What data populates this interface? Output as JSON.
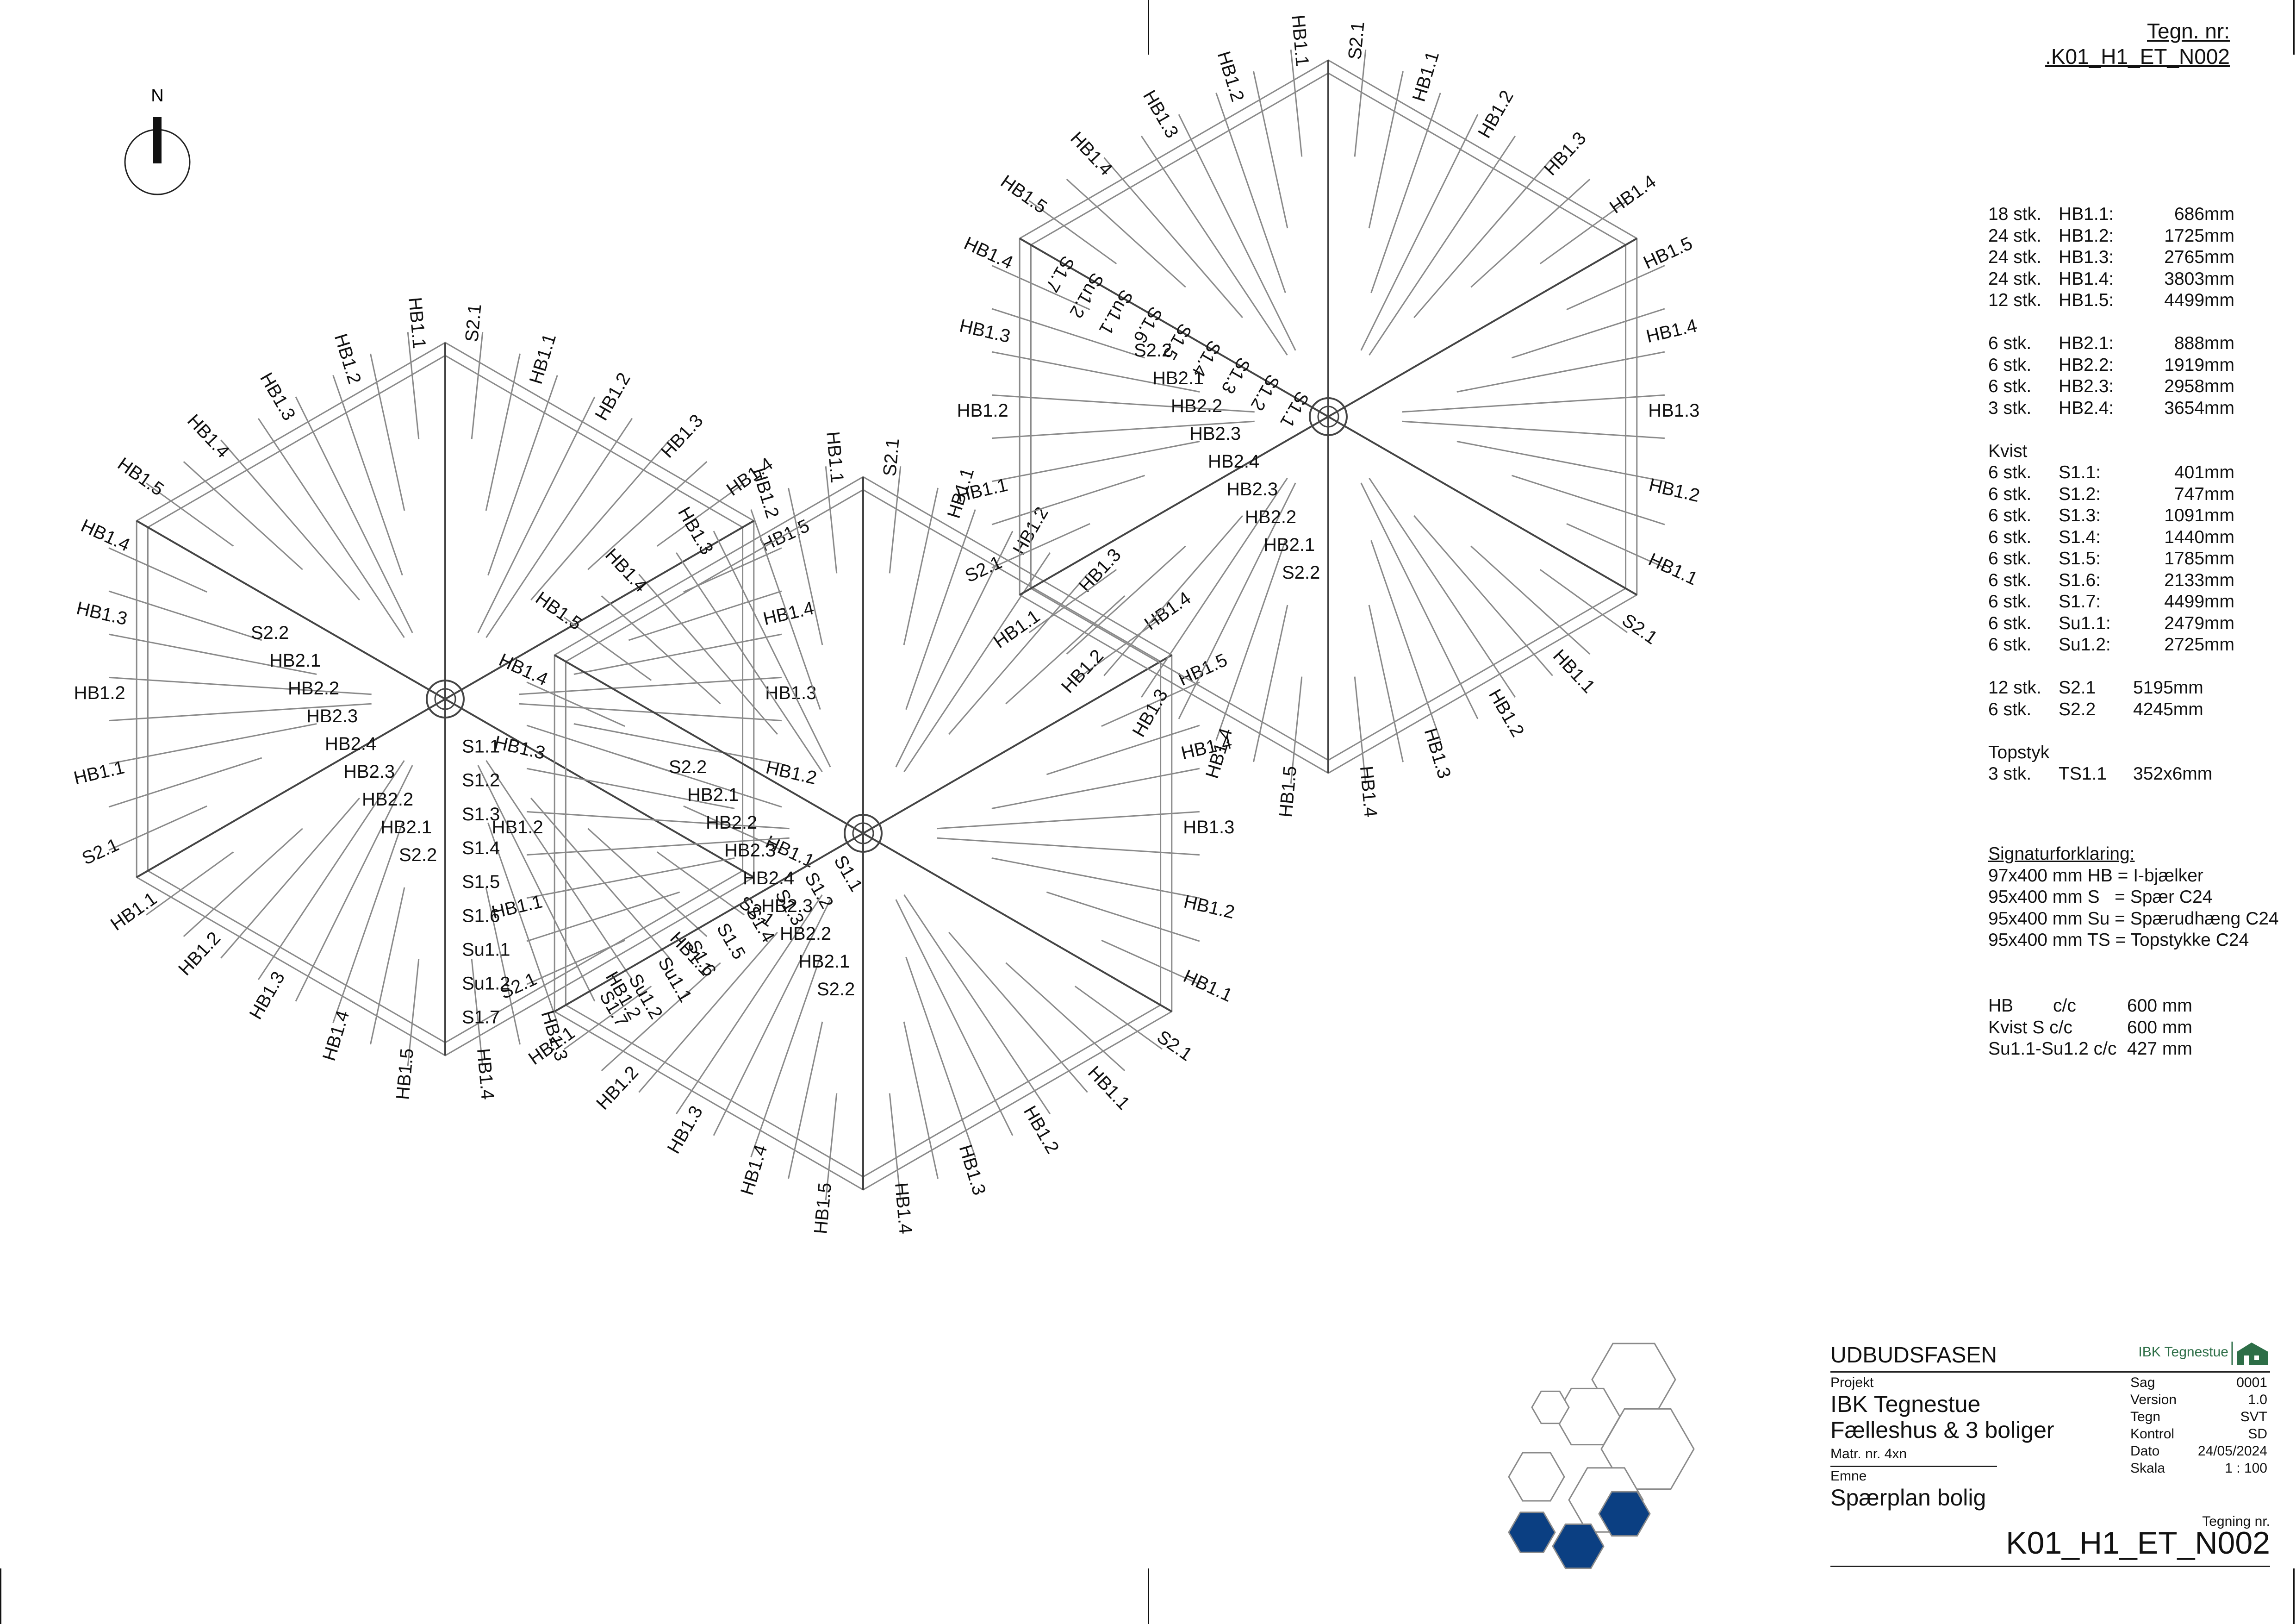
{
  "north_label": "N",
  "drawing_ref": {
    "label": "Tegn. nr:",
    "number": ".K01_H1_ET_N002"
  },
  "schedule": {
    "hb1": [
      {
        "qty": "18 stk.",
        "code": "HB1.1:",
        "length": "686mm"
      },
      {
        "qty": "24 stk.",
        "code": "HB1.2:",
        "length": "1725mm"
      },
      {
        "qty": "24 stk.",
        "code": "HB1.3:",
        "length": "2765mm"
      },
      {
        "qty": "24 stk.",
        "code": "HB1.4:",
        "length": "3803mm"
      },
      {
        "qty": "12 stk.",
        "code": "HB1.5:",
        "length": "4499mm"
      }
    ],
    "hb2": [
      {
        "qty": "6 stk.",
        "code": "HB2.1:",
        "length": "888mm"
      },
      {
        "qty": "6 stk.",
        "code": "HB2.2:",
        "length": "1919mm"
      },
      {
        "qty": "6 stk.",
        "code": "HB2.3:",
        "length": "2958mm"
      },
      {
        "qty": "3 stk.",
        "code": "HB2.4:",
        "length": "3654mm"
      }
    ],
    "kvist_heading": "Kvist",
    "kvist": [
      {
        "qty": "6 stk.",
        "code": "S1.1:",
        "length": "401mm"
      },
      {
        "qty": "6 stk.",
        "code": "S1.2:",
        "length": "747mm"
      },
      {
        "qty": "6 stk.",
        "code": "S1.3:",
        "length": "1091mm"
      },
      {
        "qty": "6 stk.",
        "code": "S1.4:",
        "length": "1440mm"
      },
      {
        "qty": "6 stk.",
        "code": "S1.5:",
        "length": "1785mm"
      },
      {
        "qty": "6 stk.",
        "code": "S1.6:",
        "length": "2133mm"
      },
      {
        "qty": "6 stk.",
        "code": "S1.7:",
        "length": "4499mm"
      },
      {
        "qty": "6 stk.",
        "code": "Su1.1:",
        "length": "2479mm"
      },
      {
        "qty": "6 stk.",
        "code": "Su1.2:",
        "length": "2725mm"
      }
    ],
    "s2": [
      {
        "qty": "12 stk.",
        "code": "S2.1",
        "length": "5195mm"
      },
      {
        "qty": "6 stk.",
        "code": "S2.2",
        "length": "4245mm"
      }
    ],
    "topstyk_heading": "Topstyk",
    "topstyk": [
      {
        "qty": "3 stk.",
        "code": "TS1.1",
        "length": "352x6mm"
      }
    ]
  },
  "legend": {
    "title": "Signaturforklaring:",
    "items": [
      "97x400 mm HB = I-bjælker",
      "95x400 mm S   = Spær C24",
      "95x400 mm Su = Spærudhæng C24",
      "95x400 mm TS = Topstykke C24"
    ]
  },
  "spacing": [
    {
      "name": "HB",
      "unit": "c/c",
      "value": "600 mm"
    },
    {
      "name": "Kvist S c/c",
      "unit": "",
      "value": "600 mm"
    },
    {
      "name": "Su1.1-Su1.2 c/c",
      "unit": "",
      "value": "427 mm"
    }
  ],
  "title_block": {
    "phase": "UDBUDSFASEN",
    "company": "IBK Tegnestue",
    "project_label": "Projekt",
    "project_name": "IBK Tegnestue",
    "project_sub": "Fælleshus & 3 boliger",
    "matr": "Matr. nr. 4xn",
    "subject_label": "Emne",
    "subject": "Spærplan bolig",
    "meta": [
      {
        "key": "Sag",
        "value": "0001"
      },
      {
        "key": "Version",
        "value": "1.0"
      },
      {
        "key": "Tegn",
        "value": "SVT"
      },
      {
        "key": "Kontrol",
        "value": "SD"
      },
      {
        "key": "Dato",
        "value": "24/05/2024"
      },
      {
        "key": "Skala",
        "value": "1 : 100"
      }
    ],
    "drawing_no_label": "Tegning nr.",
    "drawing_no": "K01_H1_ET_N002"
  },
  "plan_colors": {
    "line": "#8a8a8a",
    "dark": "#444444",
    "fill": "#0b3f82"
  },
  "plan": {
    "hexes": [
      {
        "hb_labels": [
          "S2.1",
          "HB1.1",
          "HB1.2",
          "HB1.3",
          "HB1.4",
          "HB1.5",
          "HB1.4",
          "HB1.3",
          "HB1.2",
          "HB1.1",
          "S2.1",
          "HB1.1",
          "HB1.2",
          "HB1.3",
          "HB1.4",
          "HB1.5",
          "HB1.4",
          "HB1.3",
          "HB1.2",
          "HB1.1",
          "S2.1",
          "HB1.1",
          "HB1.2",
          "HB1.3",
          "HB1.4",
          "HB1.5",
          "HB1.4",
          "HB1.3",
          "HB1.2",
          "HB1.1"
        ],
        "hb2_labels": [
          "S2.2",
          "HB2.1",
          "HB2.2",
          "HB2.3",
          "HB2.4",
          "HB2.3",
          "HB2.2",
          "HB2.1",
          "S2.2"
        ],
        "kvist_labels": [
          "S1.1",
          "S1.2",
          "S1.3",
          "S1.4",
          "S1.5",
          "S1.6",
          "Su1.1",
          "Su1.2",
          "S1.7"
        ]
      },
      {
        "hb_labels": [
          "S2.1",
          "HB1.1",
          "HB1.2",
          "HB1.3",
          "HB1.4",
          "HB1.5",
          "HB1.4",
          "HB1.3",
          "HB1.2",
          "HB1.1",
          "S2.1",
          "HB1.1",
          "HB1.2",
          "HB1.3",
          "HB1.4",
          "HB1.5",
          "HB1.4",
          "HB1.3",
          "HB1.2",
          "HB1.1",
          "S2.1",
          "HB1.1",
          "HB1.2",
          "HB1.3",
          "HB1.4",
          "HB1.5",
          "HB1.4",
          "HB1.3",
          "HB1.2",
          "HB1.1"
        ],
        "hb2_labels": [
          "S2.2",
          "HB2.1",
          "HB2.2",
          "HB2.3",
          "HB2.4",
          "HB2.3",
          "HB2.2",
          "HB2.1",
          "S2.2"
        ],
        "kvist_labels": [
          "S1.1",
          "S1.2",
          "S1.3",
          "S1.4",
          "S1.5",
          "S1.6",
          "Su1.1",
          "Su1.2",
          "S1.7"
        ]
      },
      {
        "hb_labels": [
          "S2.1",
          "HB1.1",
          "HB1.2",
          "HB1.3",
          "HB1.4",
          "HB1.5",
          "HB1.4",
          "HB1.3",
          "HB1.2",
          "HB1.1",
          "S2.1",
          "HB1.1",
          "HB1.2",
          "HB1.3",
          "HB1.4",
          "HB1.5",
          "HB1.4",
          "HB1.3",
          "HB1.2",
          "HB1.1",
          "S2.1",
          "HB1.1",
          "HB1.2",
          "HB1.3",
          "HB1.4",
          "HB1.5",
          "HB1.4",
          "HB1.3",
          "HB1.2",
          "HB1.1"
        ],
        "hb2_labels": [
          "S2.2",
          "HB2.1",
          "HB2.2",
          "HB2.3",
          "HB2.4",
          "HB2.3",
          "HB2.2",
          "HB2.1",
          "S2.2"
        ],
        "kvist_labels": [
          "S1.1",
          "S1.2",
          "S1.3",
          "S1.4",
          "S1.5",
          "S1.6",
          "Su1.1",
          "Su1.2",
          "S1.7"
        ]
      }
    ]
  }
}
